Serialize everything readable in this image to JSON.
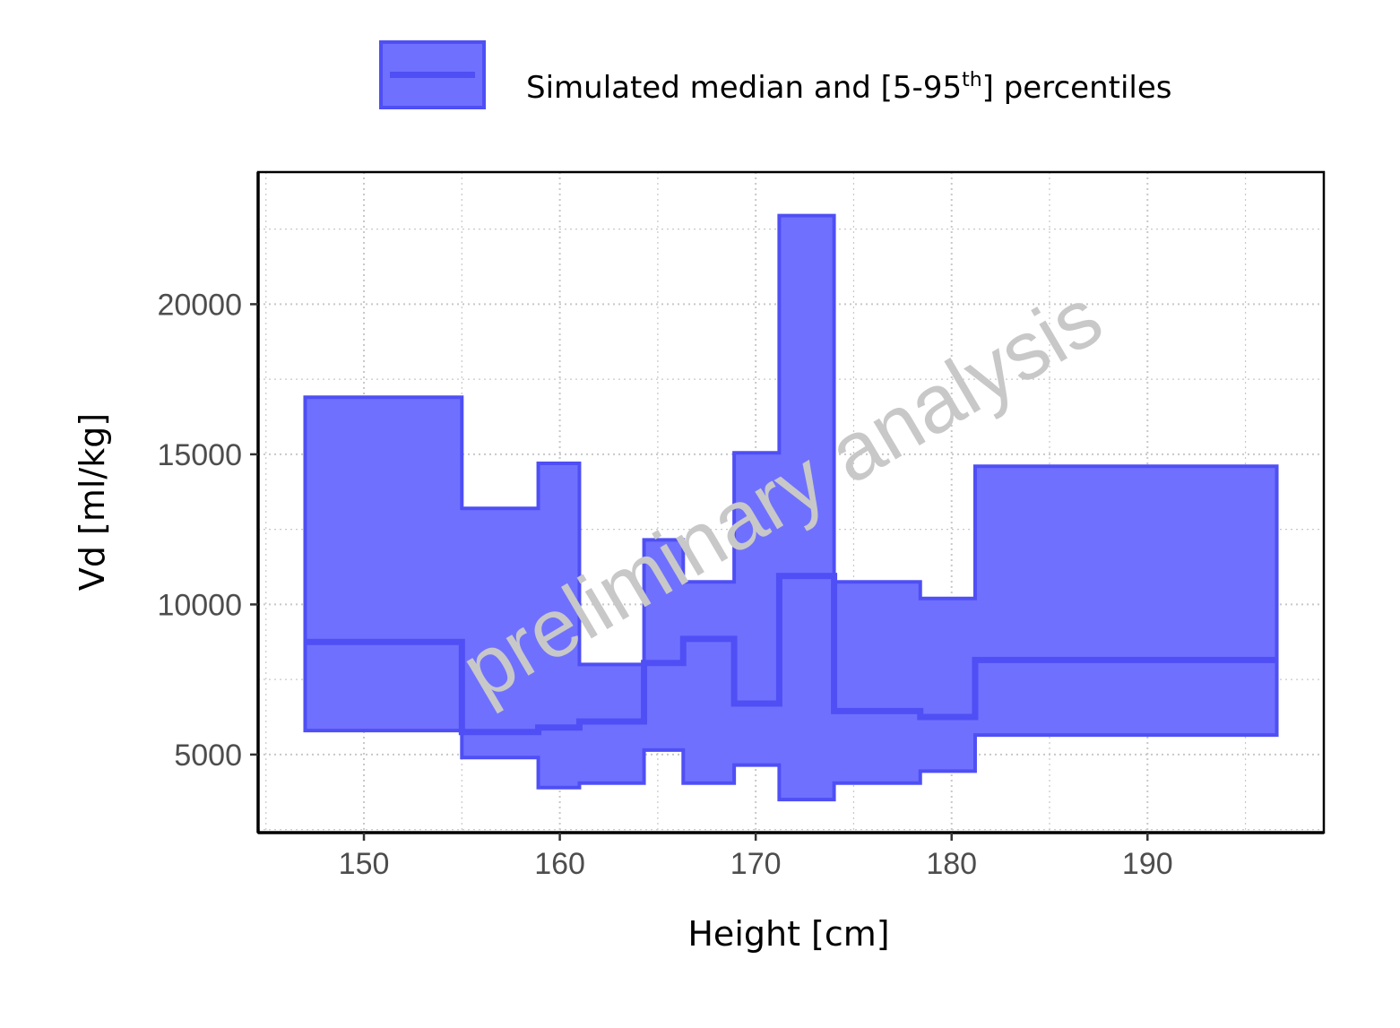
{
  "chart_data": {
    "type": "area",
    "xlabel": "Height [cm]",
    "ylabel": "Vd [ml/kg]",
    "xlim": [
      144.6,
      199
    ],
    "ylim": [
      2400,
      24400
    ],
    "x_ticks": [
      150,
      160,
      170,
      180,
      190
    ],
    "x_tick_labels": [
      "150",
      "160",
      "170",
      "180",
      "190"
    ],
    "y_ticks": [
      5000,
      10000,
      15000,
      20000
    ],
    "y_tick_labels": [
      "5000",
      "10000",
      "15000",
      "20000"
    ],
    "grid": true,
    "legend": {
      "position": "top",
      "entries": [
        {
          "label_main": "Simulated median and [5-95",
          "label_sup": "th",
          "label_end": "] percentiles"
        }
      ]
    },
    "watermark": "preliminary analysis",
    "colors": {
      "band_fill": "#7070ff",
      "line": "#4f4ff5",
      "grid": "#c8c8c8",
      "watermark": "#c8c8c8"
    },
    "series": [
      {
        "steps": [
          {
            "x0": 147.0,
            "x1": 155.0,
            "p5": 5800,
            "median": 8750,
            "p95": 16900
          },
          {
            "x0": 155.0,
            "x1": 158.9,
            "p5": 4900,
            "median": 5750,
            "p95": 13200
          },
          {
            "x0": 158.9,
            "x1": 161.0,
            "p5": 3900,
            "median": 5900,
            "p95": 14700
          },
          {
            "x0": 161.0,
            "x1": 164.3,
            "p5": 4050,
            "median": 6100,
            "p95": 8000
          },
          {
            "x0": 164.3,
            "x1": 166.3,
            "p5": 5150,
            "median": 8050,
            "p95": 12150
          },
          {
            "x0": 166.3,
            "x1": 168.9,
            "p5": 4050,
            "median": 8850,
            "p95": 10750
          },
          {
            "x0": 168.9,
            "x1": 171.2,
            "p5": 4650,
            "median": 6700,
            "p95": 15050
          },
          {
            "x0": 171.2,
            "x1": 174.0,
            "p5": 3500,
            "median": 10950,
            "p95": 22950
          },
          {
            "x0": 174.0,
            "x1": 178.4,
            "p5": 4050,
            "median": 6450,
            "p95": 10750
          },
          {
            "x0": 178.4,
            "x1": 181.2,
            "p5": 4450,
            "median": 6250,
            "p95": 10200
          },
          {
            "x0": 181.2,
            "x1": 196.6,
            "p5": 5650,
            "median": 8150,
            "p95": 14600
          }
        ]
      }
    ]
  }
}
